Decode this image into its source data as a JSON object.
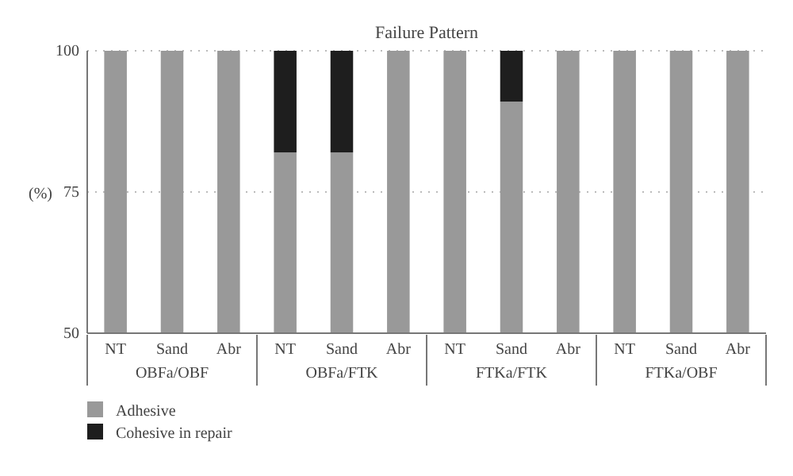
{
  "chart_data": {
    "type": "bar",
    "title": "Failure Pattern",
    "ylabel": "(%)",
    "categories": [
      "NT",
      "Sand",
      "Abr",
      "NT",
      "Sand",
      "Abr",
      "NT",
      "Sand",
      "Abr",
      "NT",
      "Sand",
      "Abr"
    ],
    "annotations": [
      "OBFa/OBF",
      "OBFa/FTK",
      "FTKa/FTK",
      "FTKa/OBF"
    ],
    "series": [
      {
        "name": "Adhesive",
        "color": "#999999",
        "values": [
          100,
          100,
          100,
          82,
          82,
          100,
          100,
          91,
          100,
          100,
          100,
          100
        ]
      },
      {
        "name": "Cohesive in repair",
        "color": "#1e1e1e",
        "values": [
          null,
          null,
          null,
          18,
          18,
          null,
          null,
          9,
          null,
          null,
          null,
          null
        ],
        "base": [
          null,
          null,
          null,
          82,
          82,
          null,
          null,
          91,
          null,
          null,
          null,
          null
        ]
      }
    ],
    "ylim": [
      50,
      100
    ],
    "yticks": [
      50,
      75,
      100
    ],
    "grid": "y",
    "legend": "bottom left"
  }
}
